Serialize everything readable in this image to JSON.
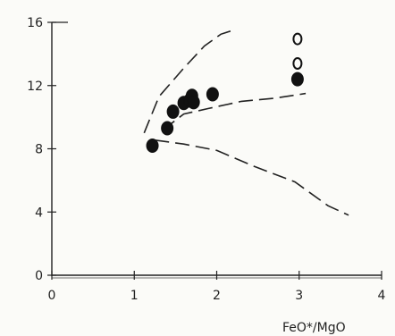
{
  "chart_data": {
    "type": "scatter",
    "title": "",
    "xlabel": "FeO*/MgO",
    "ylabel": "",
    "xlim": [
      0,
      4
    ],
    "ylim": [
      0,
      16
    ],
    "grid": false,
    "x_ticks": [
      0,
      1,
      2,
      3,
      4
    ],
    "y_ticks": [
      0,
      4,
      8,
      12,
      16
    ],
    "x_tick_labels": [
      "0",
      "1",
      "2",
      "3",
      "4"
    ],
    "y_tick_labels": [
      "0",
      "4",
      "8",
      "12",
      "16"
    ],
    "series": [
      {
        "marker": "filled-circle",
        "color": "#111111",
        "points": [
          {
            "x": 1.22,
            "y": 8.2
          },
          {
            "x": 1.4,
            "y": 9.3
          },
          {
            "x": 1.47,
            "y": 10.35
          },
          {
            "x": 1.6,
            "y": 10.9
          },
          {
            "x": 1.67,
            "y": 11.05
          },
          {
            "x": 1.7,
            "y": 11.35
          },
          {
            "x": 1.72,
            "y": 10.95
          },
          {
            "x": 1.95,
            "y": 11.45
          },
          {
            "x": 2.98,
            "y": 12.4
          }
        ]
      },
      {
        "marker": "open-circle",
        "color": "#111111",
        "points": [
          {
            "x": 2.98,
            "y": 14.95
          },
          {
            "x": 2.98,
            "y": 13.4
          }
        ]
      }
    ],
    "curves": [
      {
        "style": "dashed",
        "points": [
          {
            "x": 1.12,
            "y": 9.0
          },
          {
            "x": 1.3,
            "y": 11.3
          },
          {
            "x": 1.6,
            "y": 13.1
          },
          {
            "x": 1.85,
            "y": 14.5
          },
          {
            "x": 2.05,
            "y": 15.25
          },
          {
            "x": 2.2,
            "y": 15.5
          }
        ]
      },
      {
        "style": "dashed",
        "points": [
          {
            "x": 1.35,
            "y": 9.2
          },
          {
            "x": 1.6,
            "y": 10.2
          },
          {
            "x": 1.9,
            "y": 10.55
          },
          {
            "x": 2.3,
            "y": 11.0
          },
          {
            "x": 2.7,
            "y": 11.2
          },
          {
            "x": 3.08,
            "y": 11.5
          }
        ]
      },
      {
        "style": "dashed",
        "points": [
          {
            "x": 1.25,
            "y": 8.55
          },
          {
            "x": 1.6,
            "y": 8.3
          },
          {
            "x": 2.0,
            "y": 7.9
          },
          {
            "x": 2.45,
            "y": 6.9
          },
          {
            "x": 2.95,
            "y": 5.9
          },
          {
            "x": 3.35,
            "y": 4.4
          },
          {
            "x": 3.6,
            "y": 3.8
          }
        ]
      }
    ]
  }
}
